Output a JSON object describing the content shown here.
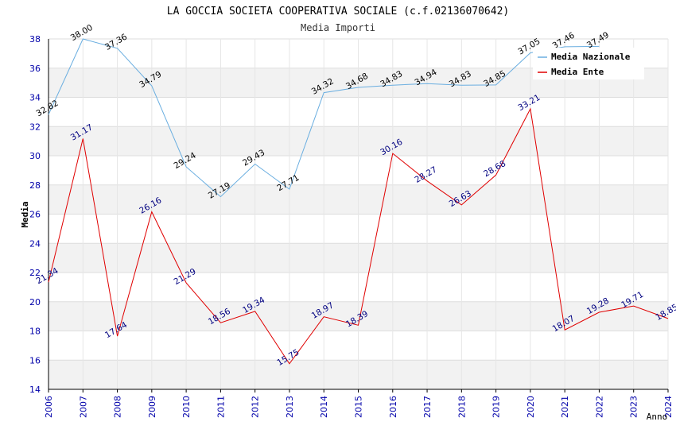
{
  "chart_data": {
    "type": "line",
    "title": "LA GOCCIA SOCIETA COOPERATIVA SOCIALE (c.f.02136070642)",
    "subtitle": "Media Importi",
    "ylabel": "Media",
    "xlabel": "Anno",
    "ylim": [
      14,
      38
    ],
    "yticks": [
      14,
      16,
      18,
      20,
      22,
      24,
      26,
      28,
      30,
      32,
      34,
      36,
      38
    ],
    "categories": [
      "2006",
      "2007",
      "2008",
      "2009",
      "2010",
      "2011",
      "2012",
      "2013",
      "2014",
      "2015",
      "2016",
      "2017",
      "2018",
      "2019",
      "2020",
      "2021",
      "2022",
      "2023",
      "2024"
    ],
    "grid": true,
    "legend_position": "top-right",
    "series": [
      {
        "name": "Media Nazionale",
        "color": "#6aaee0",
        "label_color": "#000000",
        "values": [
          32.82,
          38.0,
          37.36,
          34.79,
          29.24,
          27.19,
          29.43,
          27.71,
          34.32,
          34.68,
          34.83,
          34.94,
          34.83,
          34.85,
          37.05,
          37.46,
          37.49,
          null,
          null
        ],
        "labels": [
          "32.82",
          "38.00",
          "37.36",
          "34.79",
          "29.24",
          "27.19",
          "29.43",
          "27.71",
          "34.32",
          "34.68",
          "34.83",
          "34.94",
          "34.83",
          "34.85",
          "37.05",
          "37.46",
          "37.49",
          null,
          null
        ]
      },
      {
        "name": "Media Ente",
        "color": "#e00000",
        "label_color": "#000080",
        "values": [
          21.34,
          31.17,
          17.64,
          26.16,
          21.29,
          18.56,
          19.34,
          15.75,
          18.97,
          18.39,
          30.16,
          28.27,
          26.63,
          28.68,
          33.21,
          18.07,
          19.28,
          19.71,
          18.85
        ],
        "labels": [
          "21.34",
          "31.17",
          "17.64",
          "26.16",
          "21.29",
          "18.56",
          "19.34",
          "15.75",
          "18.97",
          "18.39",
          "30.16",
          "28.27",
          "26.63",
          "28.68",
          "33.21",
          "18.07",
          "19.28",
          "19.71",
          "18.85"
        ]
      }
    ]
  }
}
